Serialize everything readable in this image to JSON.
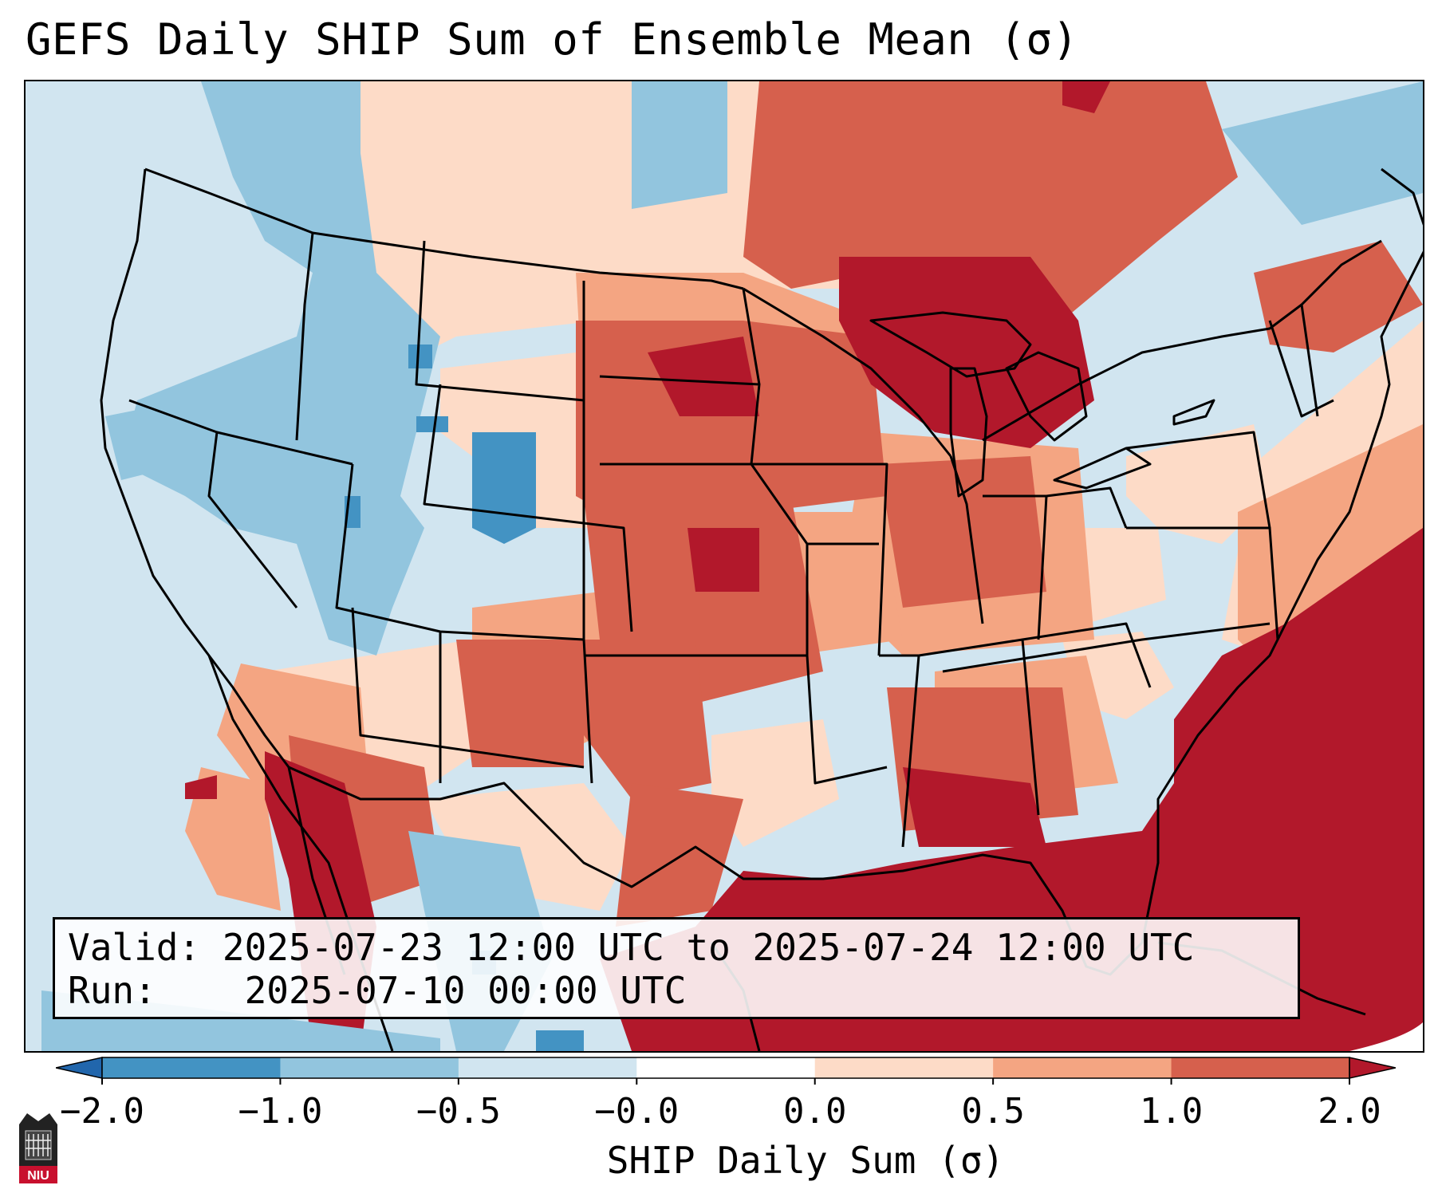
{
  "title": "GEFS Daily SHIP Sum of Ensemble Mean (σ)",
  "info_box": {
    "valid_label": "Valid:",
    "valid_value": "2025-07-23 12:00 UTC to 2025-07-24 12:00 UTC",
    "run_label": "Run:",
    "run_value": "2025-07-10 00:00 UTC"
  },
  "colorbar": {
    "label": "SHIP Daily Sum (σ)",
    "ticks": [
      "−2.0",
      "−1.0",
      "−0.5",
      "−0.0",
      "0.0",
      "0.5",
      "1.0",
      "2.0"
    ],
    "colors": [
      "#4393c3",
      "#92c5de",
      "#d1e5f0",
      "#ffffff",
      "#fddbc7",
      "#f4a582",
      "#d6604d",
      "#b2182b"
    ],
    "extend": "both"
  },
  "map": {
    "projection": "Lambert Conformal (CONUS)",
    "background_color": "#d1e5f0",
    "field_colors": {
      "strong_negative": "#4393c3",
      "negative": "#92c5de",
      "weak_negative": "#d1e5f0",
      "weak_positive": "#fddbc7",
      "positive": "#f4a582",
      "strong_positive": "#d6604d",
      "extreme_positive": "#b2182b"
    }
  },
  "logo": {
    "text": "NIU"
  }
}
